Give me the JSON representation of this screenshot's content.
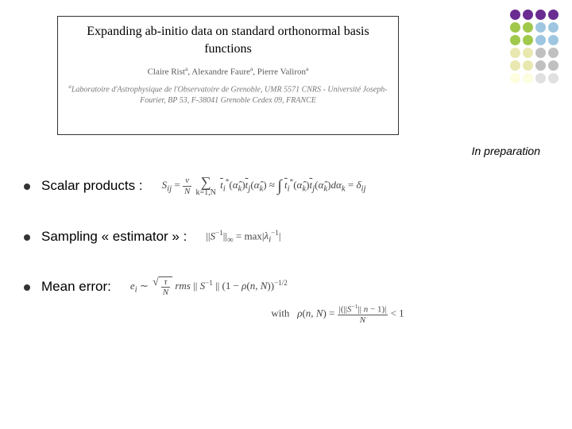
{
  "title_box": {
    "title": "Expanding ab-initio data on standard orthonormal basis functions",
    "authors_html": "Claire Rist<sup>a</sup>, Alexandre Faure<sup>a</sup>, Pierre Valiron<sup>a</sup>",
    "affiliation_html": "<sup>a</sup>Laboratoire d'Astrophysique de l'Observatoire de Grenoble, UMR 5571 CNRS - Université Joseph-Fourier, BP 53, F-38041 Grenoble Cedex 09, FRANCE",
    "border_color": "#333333",
    "title_fontsize": 16,
    "author_fontsize": 11,
    "affil_fontsize": 10
  },
  "in_preparation": "In preparation",
  "dot_grid": {
    "rows": 6,
    "cols": 4,
    "colors": [
      "#6a2c91",
      "#6a2c91",
      "#6a2c91",
      "#6a2c91",
      "#a0c84b",
      "#a0c84b",
      "#9ec6e0",
      "#9ec6e0",
      "#a0c84b",
      "#a0c84b",
      "#9ec6e0",
      "#9ec6e0",
      "#e8e8b0",
      "#e8e8b0",
      "#c0c0c0",
      "#c0c0c0",
      "#e8e8b0",
      "#e8e8b0",
      "#c0c0c0",
      "#c0c0c0",
      "#fdfde0",
      "#fdfde0",
      "#e0e0e0",
      "#e0e0e0"
    ]
  },
  "bullets": [
    {
      "label": "Scalar products :",
      "formula_html": "<i>S<sub>ij</sub></i> = <span class='frac'><span class='num'><i>v</i></span><span class='den'><i>N</i></span></span> <span class='sum'><span></span><span class='sym'>∑</span><span>k=1,N</span></span> <span class='ov'><i>t</i></span><i><sub>i</sub></i><sup>*</sup>(<i>α̂<sub>k</sub></i>)<span class='ov'><i>t</i></span><i><sub>j</sub></i>(<i>α̂<sub>k</sub></i>) ≈ <span class='integ'>∫</span> <span class='ov'><i>t</i></span><i><sub>i</sub></i><sup>*</sup>(<i>α̂<sub>k</sub></i>)<span class='ov'><i>t</i></span><i><sub>j</sub></i>(<i>α̂<sub>k</sub></i>)<i>dα<sub>k</sub></i> = <i>δ<sub>ij</sub></i>"
    },
    {
      "label": "Sampling « estimator » :",
      "formula_html": "||<i>S</i><sup>−1</sup>||<sub>∞</sub> = max|<i>λ<sub>i</sub></i><sup>−1</sup>|"
    },
    {
      "label": "Mean error:",
      "formula_html": "<i>e<sub>i</sub></i> ∼ <span class='sqrt'><span class='sqrt-in'><span class='frac'><span class='num'><i>τ</i></span><span class='den'><i>N</i></span></span></span></span>&nbsp;<i>rms</i>&nbsp;|| <i>S</i><sup>−1</sup> ||&nbsp;(1 − <i>ρ</i>(<i>n</i>, <i>N</i>))<sup>−1/2</sup>",
      "extra_html": "with&nbsp;&nbsp;&nbsp;<i>ρ</i>(<i>n</i>, <i>N</i>) = <span class='frac'><span class='num'>|(||<i>S</i><sup>−1</sup>|| <i>n</i> − 1)|</span><span class='den'><i>N</i></span></span> &lt; 1"
    }
  ],
  "styling": {
    "background_color": "#ffffff",
    "bullet_color": "#333333",
    "bullet_label_fontsize": 17,
    "formula_fontsize": 13,
    "formula_color": "#444444",
    "slide_width": 720,
    "slide_height": 540
  }
}
